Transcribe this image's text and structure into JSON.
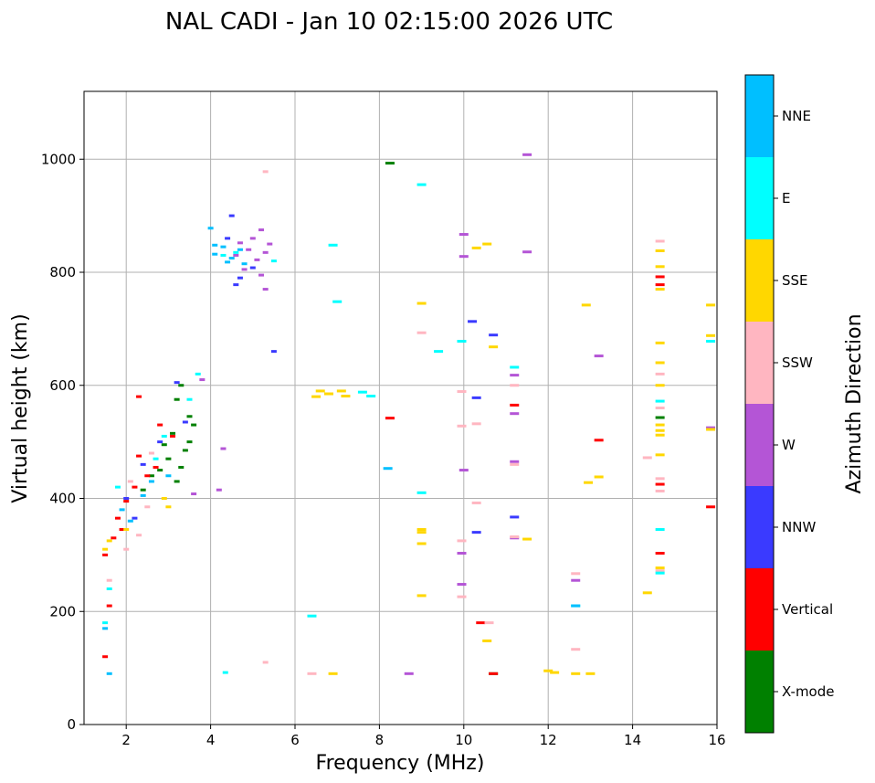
{
  "chart_data": {
    "type": "scatter",
    "title": "NAL CADI - Jan 10 02:15:00 2026 UTC",
    "xlabel": "Frequency (MHz)",
    "ylabel": "Virtual height (km)",
    "xlim": [
      1,
      16
    ],
    "ylim": [
      0,
      1120
    ],
    "xticks": [
      2,
      4,
      6,
      8,
      10,
      12,
      14,
      16
    ],
    "yticks": [
      0,
      200,
      400,
      600,
      800,
      1000
    ],
    "grid": true,
    "colorbar": {
      "label": "Azimuth Direction",
      "categories": [
        "X-mode",
        "Vertical",
        "NNW",
        "W",
        "SSW",
        "SSE",
        "E",
        "NNE"
      ],
      "colors": [
        "#008000",
        "#ff0000",
        "#3a3aff",
        "#b455d6",
        "#ffb6c1",
        "#ffd700",
        "#00ffff",
        "#00bfff"
      ]
    },
    "series": [
      {
        "name": "X-mode",
        "points": [
          [
            8.25,
            993
          ],
          [
            3.3,
            600
          ],
          [
            3.2,
            575
          ],
          [
            3.5,
            545
          ],
          [
            3.6,
            530
          ],
          [
            3.1,
            515
          ],
          [
            2.9,
            495
          ],
          [
            3.4,
            485
          ],
          [
            3.0,
            470
          ],
          [
            2.8,
            450
          ],
          [
            2.6,
            440
          ],
          [
            3.2,
            430
          ],
          [
            2.4,
            415
          ],
          [
            3.3,
            455
          ],
          [
            3.5,
            500
          ],
          [
            14.65,
            543
          ],
          [
            10.7,
            90
          ]
        ]
      },
      {
        "name": "Vertical",
        "points": [
          [
            1.5,
            120
          ],
          [
            1.6,
            210
          ],
          [
            1.5,
            300
          ],
          [
            1.7,
            330
          ],
          [
            1.8,
            365
          ],
          [
            2.0,
            395
          ],
          [
            2.2,
            420
          ],
          [
            2.5,
            440
          ],
          [
            2.3,
            475
          ],
          [
            2.7,
            455
          ],
          [
            3.1,
            510
          ],
          [
            2.8,
            530
          ],
          [
            2.3,
            580
          ],
          [
            8.25,
            542
          ],
          [
            10.4,
            180
          ],
          [
            10.7,
            90
          ],
          [
            11.2,
            565
          ],
          [
            13.2,
            503
          ],
          [
            14.65,
            425
          ],
          [
            14.65,
            303
          ],
          [
            14.65,
            792
          ],
          [
            14.65,
            778
          ],
          [
            15.85,
            385
          ],
          [
            1.9,
            345
          ]
        ]
      },
      {
        "name": "NNW",
        "points": [
          [
            4.5,
            900
          ],
          [
            4.4,
            860
          ],
          [
            5.0,
            808
          ],
          [
            4.7,
            790
          ],
          [
            4.6,
            778
          ],
          [
            5.5,
            660
          ],
          [
            3.2,
            605
          ],
          [
            3.4,
            535
          ],
          [
            2.8,
            500
          ],
          [
            2.4,
            460
          ],
          [
            2.0,
            400
          ],
          [
            2.2,
            365
          ],
          [
            10.2,
            713
          ],
          [
            10.7,
            689
          ],
          [
            10.3,
            578
          ],
          [
            10.3,
            340
          ],
          [
            11.2,
            367
          ]
        ]
      },
      {
        "name": "W",
        "points": [
          [
            5.2,
            875
          ],
          [
            5.0,
            860
          ],
          [
            4.7,
            852
          ],
          [
            5.4,
            850
          ],
          [
            4.9,
            840
          ],
          [
            5.3,
            835
          ],
          [
            4.6,
            830
          ],
          [
            5.1,
            822
          ],
          [
            4.8,
            805
          ],
          [
            5.2,
            795
          ],
          [
            5.3,
            770
          ],
          [
            3.8,
            610
          ],
          [
            4.3,
            488
          ],
          [
            4.2,
            415
          ],
          [
            3.6,
            408
          ],
          [
            10.0,
            867
          ],
          [
            10.0,
            828
          ],
          [
            11.5,
            1008
          ],
          [
            11.5,
            836
          ],
          [
            11.2,
            618
          ],
          [
            11.2,
            550
          ],
          [
            11.2,
            465
          ],
          [
            11.2,
            330
          ],
          [
            10.0,
            450
          ],
          [
            9.95,
            303
          ],
          [
            9.95,
            248
          ],
          [
            8.7,
            90
          ],
          [
            12.65,
            255
          ],
          [
            13.2,
            652
          ],
          [
            15.85,
            525
          ]
        ]
      },
      {
        "name": "SSW",
        "points": [
          [
            5.3,
            978
          ],
          [
            1.6,
            255
          ],
          [
            2.0,
            310
          ],
          [
            2.3,
            335
          ],
          [
            2.5,
            385
          ],
          [
            2.1,
            430
          ],
          [
            2.6,
            480
          ],
          [
            5.3,
            110
          ],
          [
            6.4,
            90
          ],
          [
            9.0,
            693
          ],
          [
            9.95,
            589
          ],
          [
            9.95,
            528
          ],
          [
            10.3,
            532
          ],
          [
            10.3,
            392
          ],
          [
            9.95,
            325
          ],
          [
            9.95,
            226
          ],
          [
            10.6,
            180
          ],
          [
            11.2,
            600
          ],
          [
            11.2,
            460
          ],
          [
            11.2,
            332
          ],
          [
            12.65,
            267
          ],
          [
            12.65,
            133
          ],
          [
            14.35,
            472
          ],
          [
            14.65,
            855
          ],
          [
            14.65,
            620
          ],
          [
            14.65,
            560
          ],
          [
            14.65,
            435
          ],
          [
            14.65,
            413
          ],
          [
            14.65,
            272
          ]
        ]
      },
      {
        "name": "SSE",
        "points": [
          [
            6.6,
            590
          ],
          [
            6.8,
            585
          ],
          [
            6.5,
            580
          ],
          [
            7.1,
            590
          ],
          [
            7.2,
            581
          ],
          [
            1.5,
            310
          ],
          [
            1.6,
            325
          ],
          [
            2.0,
            345
          ],
          [
            3.0,
            385
          ],
          [
            2.9,
            400
          ],
          [
            6.9,
            90
          ],
          [
            9.0,
            745
          ],
          [
            9.0,
            345
          ],
          [
            9.0,
            340
          ],
          [
            9.0,
            320
          ],
          [
            9.0,
            228
          ],
          [
            10.3,
            843
          ],
          [
            10.55,
            850
          ],
          [
            10.7,
            668
          ],
          [
            10.55,
            148
          ],
          [
            11.5,
            328
          ],
          [
            12.0,
            95
          ],
          [
            12.15,
            92
          ],
          [
            12.65,
            90
          ],
          [
            13.0,
            90
          ],
          [
            12.9,
            742
          ],
          [
            12.95,
            428
          ],
          [
            13.2,
            438
          ],
          [
            14.35,
            233
          ],
          [
            14.65,
            838
          ],
          [
            14.65,
            810
          ],
          [
            14.65,
            770
          ],
          [
            14.65,
            675
          ],
          [
            14.65,
            640
          ],
          [
            14.65,
            600
          ],
          [
            14.65,
            530
          ],
          [
            14.65,
            520
          ],
          [
            14.65,
            512
          ],
          [
            14.65,
            477
          ],
          [
            14.65,
            277
          ],
          [
            15.85,
            742
          ],
          [
            15.85,
            688
          ],
          [
            15.85,
            522
          ]
        ]
      },
      {
        "name": "E",
        "points": [
          [
            4.3,
            830
          ],
          [
            4.6,
            835
          ],
          [
            5.5,
            820
          ],
          [
            3.7,
            620
          ],
          [
            3.5,
            575
          ],
          [
            2.9,
            510
          ],
          [
            2.7,
            470
          ],
          [
            1.8,
            420
          ],
          [
            1.6,
            240
          ],
          [
            1.5,
            180
          ],
          [
            4.35,
            92
          ],
          [
            6.4,
            192
          ],
          [
            6.9,
            848
          ],
          [
            7.0,
            748
          ],
          [
            7.6,
            588
          ],
          [
            7.8,
            581
          ],
          [
            9.0,
            955
          ],
          [
            9.0,
            410
          ],
          [
            9.4,
            660
          ],
          [
            9.95,
            678
          ],
          [
            11.2,
            632
          ],
          [
            12.65,
            210
          ],
          [
            14.65,
            572
          ],
          [
            14.65,
            345
          ],
          [
            14.65,
            268
          ],
          [
            15.85,
            678
          ]
        ]
      },
      {
        "name": "NNE",
        "points": [
          [
            4.1,
            848
          ],
          [
            4.3,
            845
          ],
          [
            4.1,
            832
          ],
          [
            4.5,
            825
          ],
          [
            4.7,
            840
          ],
          [
            4.8,
            815
          ],
          [
            4.4,
            818
          ],
          [
            4.0,
            878
          ],
          [
            3.0,
            440
          ],
          [
            2.4,
            405
          ],
          [
            2.6,
            430
          ],
          [
            1.9,
            380
          ],
          [
            2.1,
            360
          ],
          [
            1.5,
            170
          ],
          [
            1.6,
            90
          ],
          [
            8.2,
            453
          ],
          [
            12.65,
            210
          ]
        ]
      }
    ]
  }
}
